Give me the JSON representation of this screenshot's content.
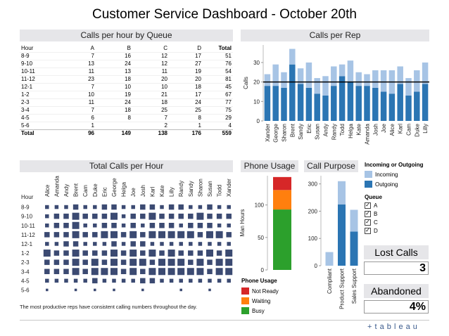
{
  "title": "Customer Service Dashboard - October 20th",
  "calls_per_hour_by_queue": {
    "header": "Calls per hour by Queue",
    "columns": [
      "Hour",
      "A",
      "B",
      "C",
      "D",
      "Total"
    ],
    "rows": [
      [
        "8-9",
        "7",
        "16",
        "12",
        "17",
        "51"
      ],
      [
        "9-10",
        "13",
        "24",
        "12",
        "27",
        "76"
      ],
      [
        "10-11",
        "11",
        "13",
        "11",
        "19",
        "54"
      ],
      [
        "11-12",
        "23",
        "18",
        "20",
        "20",
        "81"
      ],
      [
        "12-1",
        "7",
        "10",
        "10",
        "18",
        "45"
      ],
      [
        "1-2",
        "10",
        "19",
        "21",
        "17",
        "67"
      ],
      [
        "2-3",
        "11",
        "24",
        "18",
        "24",
        "77"
      ],
      [
        "3-4",
        "7",
        "18",
        "25",
        "25",
        "75"
      ],
      [
        "4-5",
        "6",
        "8",
        "7",
        "8",
        "29"
      ],
      [
        "5-6",
        "1",
        "",
        "2",
        "1",
        "4"
      ]
    ],
    "total_row": [
      "Total",
      "96",
      "149",
      "138",
      "176",
      "559"
    ]
  },
  "calls_per_rep": {
    "header": "Calls per Rep",
    "ylabel": "Calls",
    "yticks": [
      "0",
      "10",
      "20",
      "30"
    ]
  },
  "total_calls_per_hour": {
    "header": "Total Calls per Hour",
    "row_header": "Hour",
    "reps": [
      "Alice",
      "Amanda",
      "Andy",
      "Brent",
      "Cam",
      "Duke",
      "Eric",
      "George",
      "Helga",
      "Joe",
      "Josh",
      "Karl",
      "Kate",
      "Lilly",
      "Randy",
      "Sandy",
      "Sharon",
      "Susan",
      "Todd",
      "Xander"
    ],
    "hours": [
      "8-9",
      "9-10",
      "10-11",
      "11-12",
      "12-1",
      "1-2",
      "2-3",
      "3-4",
      "4-5",
      "5-6"
    ],
    "caption": "The most productive reps have consistent calling numbers throughout the day."
  },
  "phone_usage": {
    "header": "Phone Usage",
    "ylabel": "Man Hours",
    "yticks": [
      "0",
      "50",
      "100"
    ],
    "legend_title": "Phone Usage",
    "legend": [
      {
        "label": "Not Ready",
        "color": "#d62728"
      },
      {
        "label": "Waiting",
        "color": "#ff7f0e"
      },
      {
        "label": "Busy",
        "color": "#2ca02c"
      }
    ]
  },
  "call_purpose": {
    "header": "Call Purpose",
    "yticks": [
      "0",
      "100",
      "200",
      "300"
    ]
  },
  "legend_io": {
    "title": "Incoming or Outgoing",
    "items": [
      {
        "label": "Incoming",
        "color": "#a7c4e5"
      },
      {
        "label": "Outgoing",
        "color": "#2b75b3"
      }
    ]
  },
  "queue_filter": {
    "title": "Queue",
    "items": [
      {
        "label": "A",
        "checked": "✓"
      },
      {
        "label": "B",
        "checked": "✓"
      },
      {
        "label": "C",
        "checked": "✓"
      },
      {
        "label": "D",
        "checked": "✓"
      }
    ]
  },
  "kpis": {
    "lost_calls_label": "Lost Calls",
    "lost_calls_value": "3",
    "abandoned_label": "Abandoned",
    "abandoned_value": "4%"
  },
  "brand": {
    "logo_text": "+ t a b l e a u",
    "colors": {
      "incoming": "#a7c4e5",
      "outgoing": "#2b75b3",
      "square": "#3b4a72"
    }
  },
  "chart_data": [
    {
      "type": "bar",
      "title": "Calls per Rep",
      "ylabel": "Calls",
      "categories": [
        "Xander",
        "George",
        "Sharon",
        "Brent",
        "Sandy",
        "Eric",
        "Susan",
        "Andy",
        "Randy",
        "Todd",
        "Helga",
        "Kate",
        "Amanda",
        "Josh",
        "Joe",
        "Alice",
        "Karl",
        "Cam",
        "Duke",
        "Lilly"
      ],
      "series": [
        {
          "name": "Outgoing",
          "values": [
            18,
            18,
            17,
            29,
            19,
            17,
            14,
            13,
            18,
            23,
            20,
            18,
            18,
            17,
            15,
            14,
            19,
            13,
            15,
            19
          ]
        },
        {
          "name": "Incoming",
          "values": [
            6,
            11,
            8,
            8,
            8,
            13,
            8,
            10,
            10,
            6,
            11,
            7,
            6,
            9,
            11,
            12,
            9,
            9,
            11,
            11
          ]
        }
      ],
      "reference_line": 20,
      "ylim": [
        0,
        39
      ],
      "stacked": true
    },
    {
      "type": "heatmap",
      "title": "Total Calls per Hour",
      "x": [
        "Alice",
        "Amanda",
        "Andy",
        "Brent",
        "Cam",
        "Duke",
        "Eric",
        "George",
        "Helga",
        "Joe",
        "Josh",
        "Karl",
        "Kate",
        "Lilly",
        "Randy",
        "Sandy",
        "Sharon",
        "Susan",
        "Todd",
        "Xander"
      ],
      "y": [
        "8-9",
        "9-10",
        "10-11",
        "11-12",
        "12-1",
        "1-2",
        "2-3",
        "3-4",
        "4-5",
        "5-6"
      ],
      "values": [
        [
          2,
          2,
          2,
          3,
          2,
          2,
          3,
          3,
          2,
          2,
          3,
          3,
          2,
          3,
          3,
          2,
          2,
          3,
          2,
          2
        ],
        [
          2,
          3,
          3,
          4,
          3,
          3,
          3,
          4,
          2,
          3,
          3,
          4,
          3,
          3,
          3,
          3,
          4,
          3,
          3,
          3
        ],
        [
          2,
          3,
          3,
          4,
          2,
          2,
          3,
          3,
          2,
          3,
          2,
          3,
          3,
          3,
          2,
          3,
          3,
          3,
          2,
          2
        ],
        [
          3,
          3,
          3,
          4,
          3,
          3,
          4,
          4,
          3,
          4,
          3,
          4,
          4,
          4,
          4,
          4,
          3,
          4,
          4,
          3
        ],
        [
          2,
          2,
          3,
          3,
          2,
          2,
          2,
          3,
          2,
          3,
          3,
          2,
          2,
          2,
          2,
          2,
          2,
          2,
          2,
          2
        ],
        [
          4,
          3,
          3,
          4,
          3,
          3,
          3,
          4,
          3,
          4,
          3,
          4,
          3,
          4,
          3,
          3,
          3,
          4,
          3,
          4
        ],
        [
          3,
          3,
          3,
          4,
          3,
          4,
          3,
          4,
          3,
          4,
          4,
          3,
          4,
          4,
          4,
          3,
          4,
          3,
          4,
          4
        ],
        [
          3,
          3,
          3,
          4,
          3,
          4,
          4,
          4,
          3,
          4,
          3,
          4,
          4,
          4,
          4,
          4,
          4,
          3,
          4,
          4
        ],
        [
          2,
          2,
          2,
          2,
          2,
          3,
          2,
          2,
          2,
          2,
          3,
          3,
          2,
          2,
          2,
          2,
          2,
          2,
          2,
          2
        ],
        [
          1,
          0,
          0,
          1,
          0,
          1,
          0,
          1,
          0,
          0,
          1,
          0,
          0,
          0,
          1,
          0,
          0,
          1,
          0,
          0
        ]
      ]
    },
    {
      "type": "bar",
      "title": "Phone Usage",
      "ylabel": "Man Hours",
      "categories": [
        ""
      ],
      "series": [
        {
          "name": "Busy",
          "values": [
            93
          ]
        },
        {
          "name": "Waiting",
          "values": [
            30
          ]
        },
        {
          "name": "Not Ready",
          "values": [
            20
          ]
        }
      ],
      "ylim": [
        0,
        145
      ],
      "stacked": true
    },
    {
      "type": "bar",
      "title": "Call Purpose",
      "categories": [
        "Compliant",
        "Product Support",
        "Sales Support"
      ],
      "series": [
        {
          "name": "Outgoing",
          "values": [
            0,
            225,
            125
          ]
        },
        {
          "name": "Incoming",
          "values": [
            50,
            85,
            80
          ]
        }
      ],
      "ylim": [
        0,
        330
      ],
      "stacked": true
    }
  ]
}
